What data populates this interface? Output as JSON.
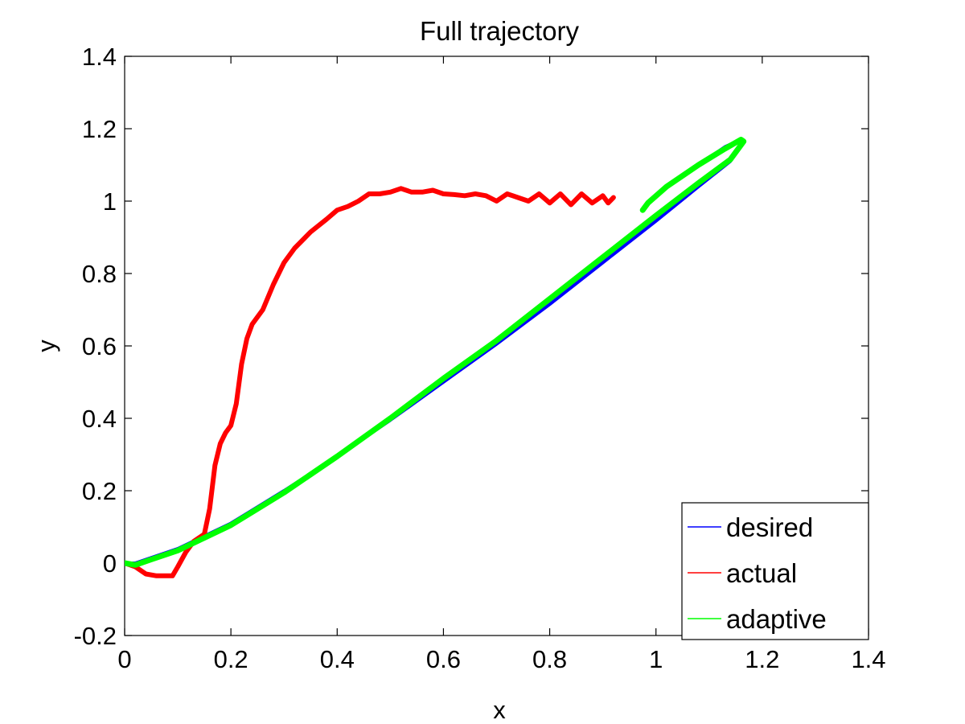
{
  "chart_data": {
    "type": "line",
    "title": "Full trajectory",
    "xlabel": "x",
    "ylabel": "y",
    "xlim": [
      0,
      1.4
    ],
    "ylim": [
      -0.2,
      1.4
    ],
    "xticks": [
      0,
      0.2,
      0.4,
      0.6,
      0.8,
      1,
      1.2,
      1.4
    ],
    "yticks": [
      -0.2,
      0,
      0.2,
      0.4,
      0.6,
      0.8,
      1,
      1.2,
      1.4
    ],
    "xtick_labels": [
      "0",
      "0.2",
      "0.4",
      "0.6",
      "0.8",
      "1",
      "1.2",
      "1.4"
    ],
    "ytick_labels": [
      "-0.2",
      "0",
      "0.2",
      "0.4",
      "0.6",
      "0.8",
      "1",
      "1.2",
      "1.4"
    ],
    "grid": false,
    "legend_position": "bottom-right",
    "series": [
      {
        "name": "desired",
        "color": "#0000ff",
        "line_width": 4,
        "x": [
          0,
          0.02,
          0.05,
          0.1,
          0.2,
          0.3,
          0.4,
          0.5,
          0.6,
          0.7,
          0.8,
          0.9,
          1.0,
          1.08,
          1.14,
          1.165,
          1.16,
          1.13,
          1.08,
          1.02,
          0.985,
          0.975
        ],
        "y": [
          0.0,
          0.0,
          0.015,
          0.04,
          0.11,
          0.2,
          0.295,
          0.395,
          0.5,
          0.605,
          0.715,
          0.83,
          0.945,
          1.04,
          1.11,
          1.16,
          1.17,
          1.15,
          1.1,
          1.04,
          0.995,
          0.975
        ]
      },
      {
        "name": "actual",
        "color": "#ff0000",
        "line_width": 6,
        "x": [
          0,
          0.02,
          0.04,
          0.06,
          0.09,
          0.1,
          0.115,
          0.13,
          0.15,
          0.16,
          0.17,
          0.18,
          0.19,
          0.2,
          0.21,
          0.22,
          0.23,
          0.24,
          0.26,
          0.28,
          0.3,
          0.32,
          0.35,
          0.38,
          0.4,
          0.42,
          0.44,
          0.46,
          0.48,
          0.5,
          0.52,
          0.54,
          0.56,
          0.58,
          0.6,
          0.62,
          0.64,
          0.66,
          0.68,
          0.7,
          0.72,
          0.74,
          0.76,
          0.78,
          0.8,
          0.82,
          0.84,
          0.86,
          0.88,
          0.9,
          0.91,
          0.92
        ],
        "y": [
          0.0,
          -0.01,
          -0.03,
          -0.035,
          -0.035,
          -0.01,
          0.03,
          0.06,
          0.08,
          0.15,
          0.27,
          0.33,
          0.36,
          0.38,
          0.44,
          0.55,
          0.62,
          0.66,
          0.7,
          0.77,
          0.83,
          0.87,
          0.915,
          0.95,
          0.975,
          0.985,
          1.0,
          1.02,
          1.02,
          1.025,
          1.035,
          1.025,
          1.025,
          1.03,
          1.02,
          1.018,
          1.015,
          1.02,
          1.015,
          1.0,
          1.02,
          1.01,
          1.0,
          1.02,
          0.995,
          1.02,
          0.99,
          1.02,
          0.995,
          1.015,
          0.995,
          1.01
        ]
      },
      {
        "name": "adaptive",
        "color": "#00ff00",
        "line_width": 7,
        "x": [
          0,
          0.02,
          0.05,
          0.1,
          0.2,
          0.3,
          0.4,
          0.5,
          0.6,
          0.7,
          0.8,
          0.9,
          1.0,
          1.08,
          1.14,
          1.165,
          1.16,
          1.13,
          1.08,
          1.02,
          0.985,
          0.975
        ],
        "y": [
          0.0,
          -0.005,
          0.01,
          0.035,
          0.105,
          0.195,
          0.295,
          0.4,
          0.51,
          0.615,
          0.73,
          0.845,
          0.96,
          1.05,
          1.115,
          1.165,
          1.17,
          1.145,
          1.1,
          1.04,
          0.995,
          0.975
        ]
      }
    ]
  }
}
